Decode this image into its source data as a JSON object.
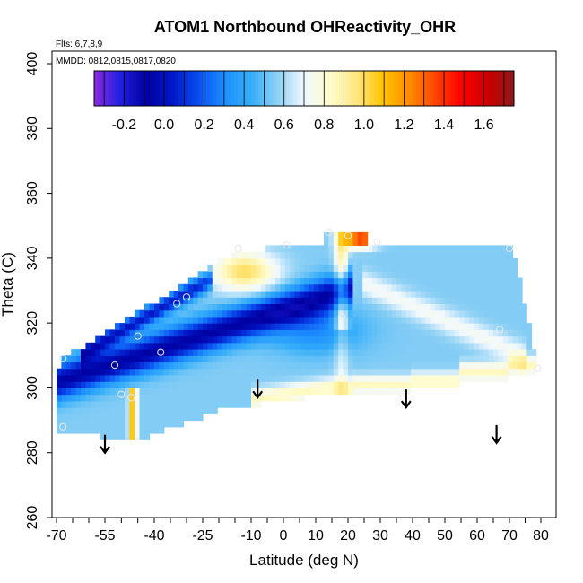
{
  "chart_data": {
    "type": "heatmap",
    "title": "ATOM1 Northbound OHReactivity_OHR",
    "flights_note": "Flts: 6,7,8,9",
    "dates_note": "MMDD: 0812,0815,0817,0820",
    "xlabel": "Latitude (deg N)",
    "ylabel": "Theta (C)",
    "xlim": [
      -70,
      82
    ],
    "ylim": [
      260,
      402
    ],
    "x_ticks": [
      -70,
      -55,
      -40,
      -25,
      -10,
      0,
      10,
      20,
      30,
      40,
      50,
      60,
      70,
      80
    ],
    "y_ticks": [
      260,
      280,
      300,
      320,
      340,
      360,
      380,
      400
    ],
    "colorbar": {
      "range": [
        -0.35,
        1.75
      ],
      "tick_values": [
        -0.2,
        0.0,
        0.2,
        0.4,
        0.6,
        0.8,
        1.0,
        1.2,
        1.4,
        1.6
      ],
      "tick_labels": [
        "-0.2",
        "0.0",
        "0.2",
        "0.4",
        "0.6",
        "0.8",
        "1.0",
        "1.2",
        "1.4",
        "1.6"
      ],
      "colors": [
        "#8a2be2",
        "#2020e0",
        "#0000a0",
        "#0018c8",
        "#0a50f0",
        "#1e90ff",
        "#35aef8",
        "#8fd1f5",
        "#f0f8ff",
        "#fffccc",
        "#ffe680",
        "#ffc400",
        "#ff8c00",
        "#ff4500",
        "#ff0000",
        "#cc0000",
        "#8b1a1a"
      ]
    },
    "profile_points": [
      {
        "lat": -68,
        "theta": 309
      },
      {
        "lat": -68,
        "theta": 288
      },
      {
        "lat": -52,
        "theta": 307
      },
      {
        "lat": -50,
        "theta": 298
      },
      {
        "lat": -47,
        "theta": 297
      },
      {
        "lat": -45,
        "theta": 316
      },
      {
        "lat": -38,
        "theta": 311
      },
      {
        "lat": -33,
        "theta": 326
      },
      {
        "lat": -30,
        "theta": 328
      },
      {
        "lat": -14,
        "theta": 343
      },
      {
        "lat": 1,
        "theta": 344
      },
      {
        "lat": 14,
        "theta": 348
      },
      {
        "lat": 18,
        "theta": 322
      },
      {
        "lat": 20,
        "theta": 347
      },
      {
        "lat": 29,
        "theta": 345
      },
      {
        "lat": 67,
        "theta": 318
      },
      {
        "lat": 70,
        "theta": 343
      },
      {
        "lat": 79,
        "theta": 306
      }
    ],
    "arrows": [
      {
        "lat": -55,
        "theta": 280
      },
      {
        "lat": -8,
        "theta": 297
      },
      {
        "lat": 38,
        "theta": 294
      },
      {
        "lat": 66,
        "theta": 283
      }
    ]
  }
}
